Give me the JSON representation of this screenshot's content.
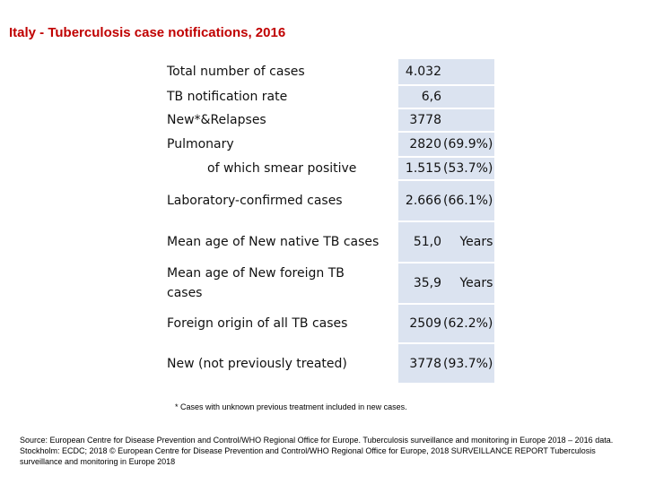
{
  "title": "Italy - Tuberculosis case notifications,  2016",
  "rows": [
    {
      "label": "Total number of cases",
      "value": "4.032",
      "pct": ""
    },
    {
      "label": "TB notification rate",
      "value": "6,6",
      "pct": ""
    },
    {
      "label": "New*&Relapses",
      "value": "3778",
      "pct": ""
    },
    {
      "label": "Pulmonary",
      "value": "2820",
      "pct": "(69.9%)"
    },
    {
      "label": "of which smear positive",
      "value": "1.515",
      "pct": "(53.7%)"
    },
    {
      "label": "Laboratory-confirmed cases",
      "value": "2.666",
      "pct": "(66.1%)"
    },
    {
      "label": "Mean age of New native TB cases",
      "value": "51,0",
      "pct": "Years"
    },
    {
      "label": "Mean age of New foreign TB cases",
      "value": "35,9",
      "pct": "Years"
    },
    {
      "label": "Foreign origin of all TB cases",
      "value": "2509",
      "pct": "(62.2%)"
    },
    {
      "label": "New (not previously treated)",
      "value": "3778",
      "pct": "(93.7%)"
    }
  ],
  "footnote": "* Cases with unknown previous treatment included in new cases.",
  "source": "Source: European Centre for Disease Prevention and Control/WHO Regional Office for Europe. Tuberculosis surveillance and monitoring in Europe 2018 – 2016 data. Stockholm: ECDC; 2018 © European Centre for Disease Prevention and Control/WHO Regional Office for Europe, 2018 SURVEILLANCE REPORT Tuberculosis surveillance and monitoring in Europe 2018",
  "colors": {
    "title": "#c00000",
    "value_cell_bg": "#dbe3f0"
  }
}
